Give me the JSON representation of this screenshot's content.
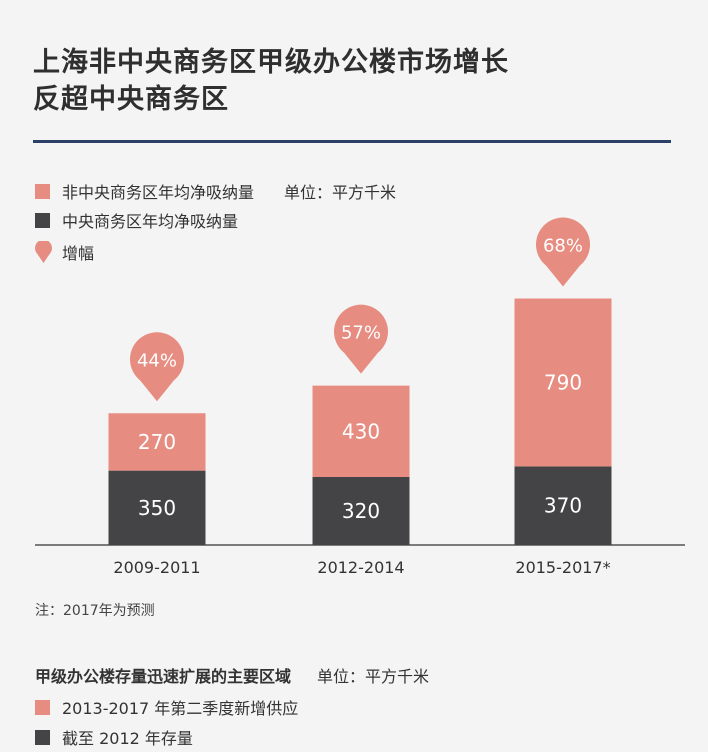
{
  "title": {
    "line1": "上海非中央商务区甲级办公楼市场增长",
    "line2": "反超中央商务区"
  },
  "legend": {
    "series1": "非中央商务区年均净吸纳量",
    "unit": "单位：平方千米",
    "series2": "中央商务区年均净吸纳量",
    "growth": "增幅"
  },
  "colors": {
    "salmon": "#e68c80",
    "dark": "#444446",
    "rule": "#2d3f66",
    "axis": "#333333"
  },
  "chart_data": {
    "type": "bar",
    "stacked": true,
    "categories": [
      "2009-2011",
      "2012-2014",
      "2015-2017*"
    ],
    "series": [
      {
        "name": "中央商务区年均净吸纳量",
        "values": [
          350,
          320,
          370
        ]
      },
      {
        "name": "非中央商务区年均净吸纳量",
        "values": [
          270,
          430,
          790
        ]
      }
    ],
    "growth": [
      "44%",
      "57%",
      "68%"
    ]
  },
  "note": "注：2017年为预测",
  "section2": {
    "title": "甲级办公楼存量迅速扩展的主要区域",
    "unit": "单位：平方千米",
    "legend1": "2013-2017 年第二季度新增供应",
    "legend2": "截至 2012 年存量"
  }
}
